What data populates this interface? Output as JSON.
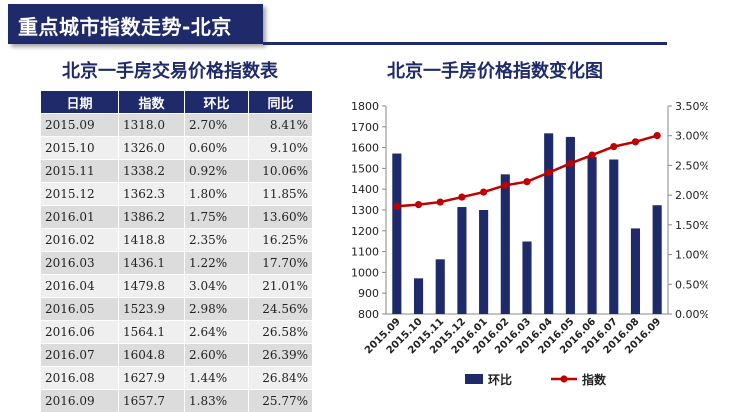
{
  "header": {
    "title": "重点城市指数走势-北京"
  },
  "table": {
    "title": "北京一手房交易价格指数表",
    "columns": [
      "日期",
      "指数",
      "环比",
      "同比"
    ],
    "rows": [
      [
        "2015.09",
        "1318.0",
        "2.70%",
        "8.41%"
      ],
      [
        "2015.10",
        "1326.0",
        "0.60%",
        "9.10%"
      ],
      [
        "2015.11",
        "1338.2",
        "0.92%",
        "10.06%"
      ],
      [
        "2015.12",
        "1362.3",
        "1.80%",
        "11.85%"
      ],
      [
        "2016.01",
        "1386.2",
        "1.75%",
        "13.60%"
      ],
      [
        "2016.02",
        "1418.8",
        "2.35%",
        "16.25%"
      ],
      [
        "2016.03",
        "1436.1",
        "1.22%",
        "17.70%"
      ],
      [
        "2016.04",
        "1479.8",
        "3.04%",
        "21.01%"
      ],
      [
        "2016.05",
        "1523.9",
        "2.98%",
        "24.56%"
      ],
      [
        "2016.06",
        "1564.1",
        "2.64%",
        "26.58%"
      ],
      [
        "2016.07",
        "1604.8",
        "2.60%",
        "26.39%"
      ],
      [
        "2016.08",
        "1627.9",
        "1.44%",
        "26.84%"
      ],
      [
        "2016.09",
        "1657.7",
        "1.83%",
        "25.77%"
      ]
    ]
  },
  "chart_data": {
    "type": "bar",
    "title": "北京一手房价格指数变化图",
    "categories": [
      "2015.09",
      "2015.10",
      "2015.11",
      "2015.12",
      "2016.01",
      "2016.02",
      "2016.03",
      "2016.04",
      "2016.05",
      "2016.06",
      "2016.07",
      "2016.08",
      "2016.09"
    ],
    "series": [
      {
        "name": "环比",
        "type": "bar",
        "axis": "right",
        "values": [
          2.7,
          0.6,
          0.92,
          1.8,
          1.75,
          2.35,
          1.22,
          3.04,
          2.98,
          2.64,
          2.6,
          1.44,
          1.83
        ],
        "color": "#1f2a6b"
      },
      {
        "name": "指数",
        "type": "line",
        "axis": "left",
        "values": [
          1318.0,
          1326.0,
          1338.2,
          1362.3,
          1386.2,
          1418.8,
          1436.1,
          1479.8,
          1523.9,
          1564.1,
          1604.8,
          1627.9,
          1657.7
        ],
        "color": "#c00000"
      }
    ],
    "left_axis": {
      "min": 800,
      "max": 1800,
      "step": 100,
      "ticks": [
        "800",
        "900",
        "1000",
        "1100",
        "1200",
        "1300",
        "1400",
        "1500",
        "1600",
        "1700",
        "1800"
      ]
    },
    "right_axis": {
      "min": 0,
      "max": 3.5,
      "step": 0.5,
      "ticks": [
        "0.00%",
        "0.50%",
        "1.00%",
        "1.50%",
        "2.00%",
        "2.50%",
        "3.00%",
        "3.50%"
      ]
    },
    "grid": false,
    "legend": "bottom"
  }
}
